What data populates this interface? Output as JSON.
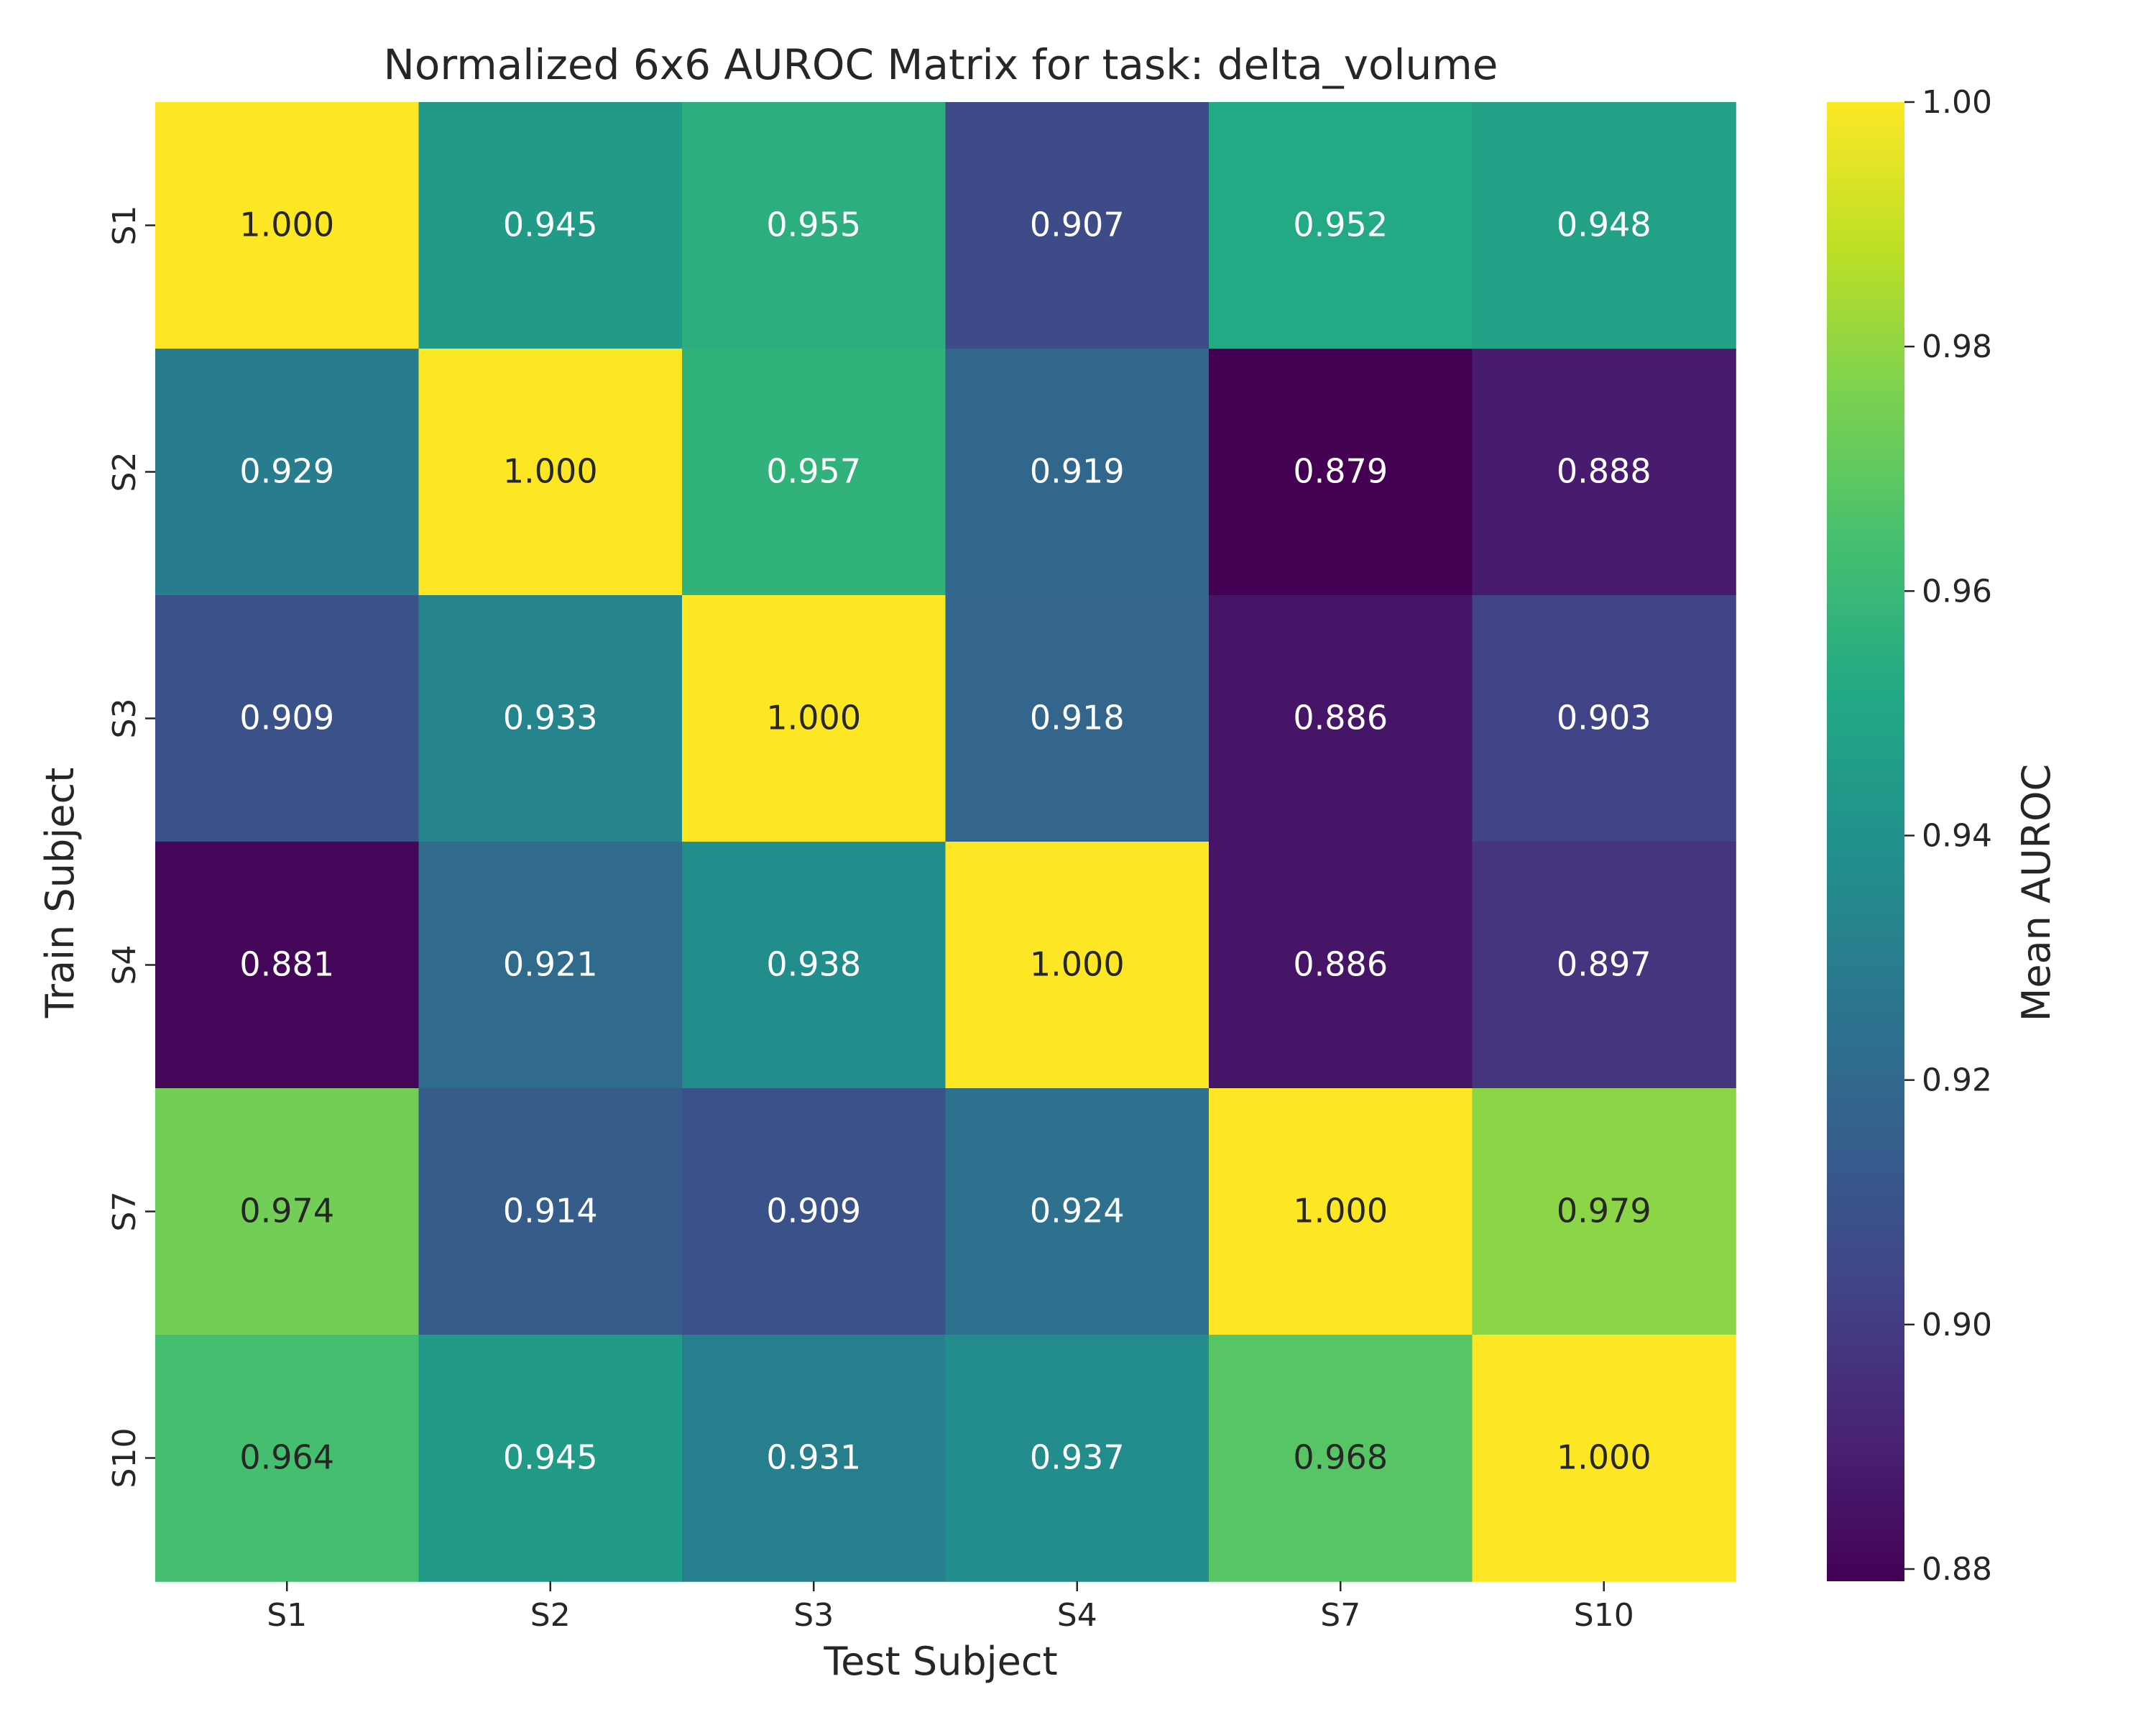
{
  "chart_data": {
    "type": "heatmap",
    "title": "Normalized 6x6 AUROC Matrix for task: delta_volume",
    "xlabel": "Test Subject",
    "ylabel": "Train Subject",
    "x_categories": [
      "S1",
      "S2",
      "S3",
      "S4",
      "S7",
      "S10"
    ],
    "y_categories": [
      "S1",
      "S2",
      "S3",
      "S4",
      "S7",
      "S10"
    ],
    "values": [
      [
        1.0,
        0.945,
        0.955,
        0.907,
        0.952,
        0.948
      ],
      [
        0.929,
        1.0,
        0.957,
        0.919,
        0.879,
        0.888
      ],
      [
        0.909,
        0.933,
        1.0,
        0.918,
        0.886,
        0.903
      ],
      [
        0.881,
        0.921,
        0.938,
        1.0,
        0.886,
        0.897
      ],
      [
        0.974,
        0.914,
        0.909,
        0.924,
        1.0,
        0.979
      ],
      [
        0.964,
        0.945,
        0.931,
        0.937,
        0.968,
        1.0
      ]
    ],
    "value_format": "3 decimals",
    "colormap": "viridis",
    "colorbar": {
      "label": "Mean AUROC",
      "range": [
        0.879,
        1.0
      ],
      "ticks": [
        "0.88",
        "0.90",
        "0.92",
        "0.94",
        "0.96",
        "0.98",
        "1.00"
      ]
    }
  }
}
